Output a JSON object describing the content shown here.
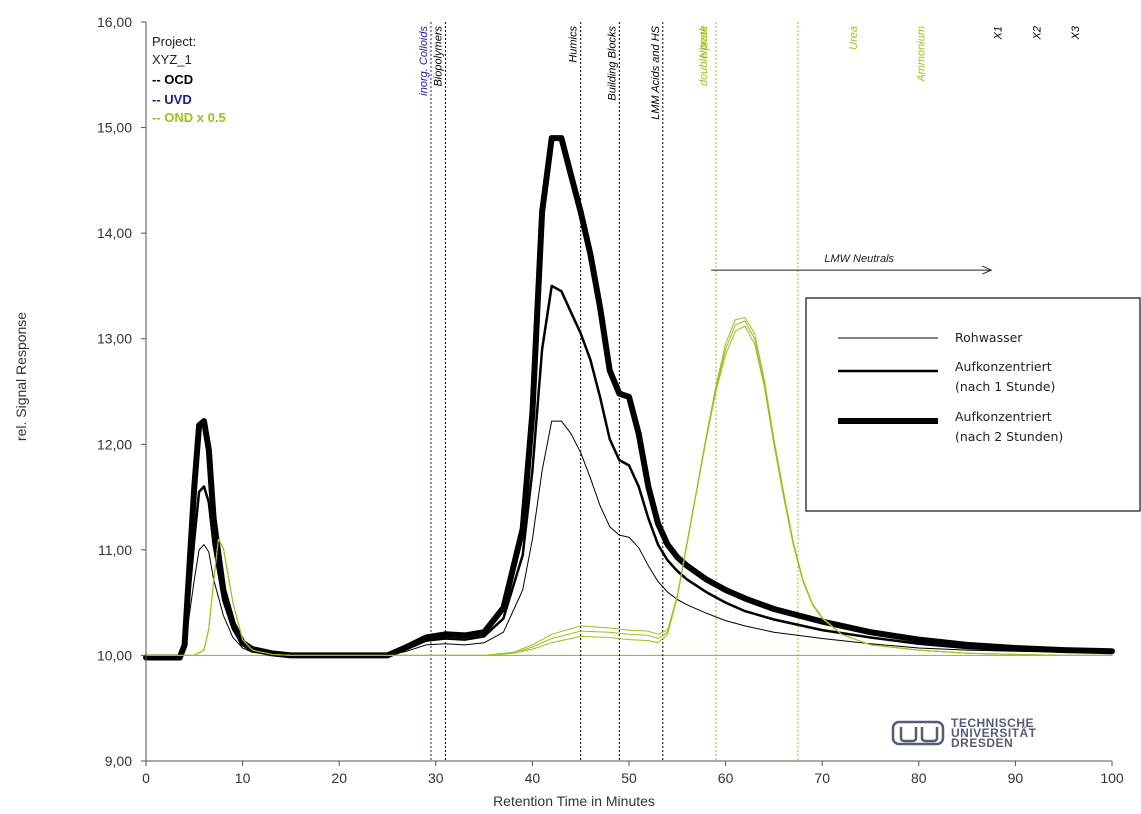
{
  "chart_data": {
    "type": "line",
    "xlabel": "Retention Time in Minutes",
    "ylabel": "rel. Signal Response",
    "xlim": [
      0,
      100
    ],
    "ylim": [
      9,
      16
    ],
    "x_ticks": [
      "0",
      "10",
      "20",
      "30",
      "40",
      "50",
      "60",
      "70",
      "80",
      "90",
      "100"
    ],
    "y_ticks": [
      "9,00",
      "10,00",
      "11,00",
      "12,00",
      "13,00",
      "14,00",
      "15,00",
      "16,00"
    ],
    "baseline": 10.0,
    "project": {
      "line1": "Project:",
      "line2": "XYZ_1",
      "detectors": [
        {
          "label": "-- OCD",
          "color": "#000000"
        },
        {
          "label": "-- UVD",
          "color": "#1a1aa6"
        },
        {
          "label": "-- OND x 0.5",
          "color": "#99c21a"
        }
      ]
    },
    "markers": [
      {
        "x": 29.5,
        "label": "inorg. Colloids",
        "color": "#1a1aa6",
        "line": "dotted"
      },
      {
        "x": 31.0,
        "label": "Biopolymers",
        "color": "#000000",
        "line": "dotted"
      },
      {
        "x": 45.0,
        "label": "Humics",
        "color": "#000000",
        "line": "dotted"
      },
      {
        "x": 49.0,
        "label": "Building Blocks",
        "color": "#000000",
        "line": "dotted"
      },
      {
        "x": 53.5,
        "label": "LMM Acids and HS",
        "color": "#000000",
        "line": "dotted"
      },
      {
        "x": 59.0,
        "label": "Nitrate double peak",
        "label_lines": [
          "Nitrate",
          "double peak"
        ],
        "color": "#99c21a",
        "line": "dotted"
      },
      {
        "x": 67.5,
        "label": "",
        "color": "#99c21a",
        "line": "dotted"
      },
      {
        "x": 74.0,
        "label": "Urea",
        "color": "#99c21a",
        "line": "none"
      },
      {
        "x": 81.0,
        "label": "Ammonium",
        "color": "#99c21a",
        "line": "none"
      },
      {
        "x": 89.0,
        "label": "X1",
        "color": "#000000",
        "line": "none"
      },
      {
        "x": 93.0,
        "label": "X2",
        "color": "#000000",
        "line": "none"
      },
      {
        "x": 97.0,
        "label": "X3",
        "color": "#000000",
        "line": "none"
      }
    ],
    "annotation": {
      "label": "LMW Neutrals",
      "x_start": 58.5,
      "x_end": 87.5,
      "y": 13.65
    },
    "legend": {
      "placement": "right",
      "entries": [
        {
          "text": [
            "Rohwasser"
          ],
          "width": 1
        },
        {
          "text": [
            "Aufkonzentriert",
            "(nach 1 Stunde)"
          ],
          "width": 2.5
        },
        {
          "text": [
            "Aufkonzentriert",
            "(nach 2 Stunden)"
          ],
          "width": 6
        }
      ]
    },
    "series": [
      {
        "detector": "OCD",
        "color": "#000000",
        "width": 1,
        "x": [
          0,
          3.5,
          4,
          5,
          5.5,
          6,
          6.5,
          7,
          8,
          9,
          10,
          11,
          13,
          15,
          20,
          25,
          27,
          29,
          31,
          33,
          35,
          37,
          39,
          40,
          41,
          42,
          43,
          44,
          45,
          46,
          47,
          48,
          49,
          50,
          51,
          52,
          53,
          54,
          55,
          56,
          58,
          60,
          62,
          65,
          70,
          75,
          80,
          85,
          90,
          95,
          100
        ],
        "y": [
          9.98,
          9.98,
          10.06,
          10.72,
          11.0,
          11.05,
          10.98,
          10.72,
          10.38,
          10.17,
          10.07,
          10.03,
          10.01,
          10.0,
          10.0,
          10.0,
          10.04,
          10.1,
          10.11,
          10.1,
          10.12,
          10.22,
          10.62,
          11.1,
          11.75,
          12.22,
          12.22,
          12.1,
          11.92,
          11.68,
          11.42,
          11.22,
          11.14,
          11.12,
          11.02,
          10.85,
          10.7,
          10.6,
          10.53,
          10.48,
          10.4,
          10.33,
          10.28,
          10.22,
          10.16,
          10.11,
          10.07,
          10.05,
          10.04,
          10.03,
          10.03
        ]
      },
      {
        "detector": "OCD",
        "color": "#000000",
        "width": 2.5,
        "x": [
          0,
          3.5,
          4,
          5,
          5.5,
          6,
          6.5,
          7,
          8,
          9,
          10,
          11,
          13,
          15,
          20,
          25,
          27,
          29,
          31,
          33,
          35,
          37,
          39,
          40,
          41,
          42,
          43,
          44,
          45,
          46,
          47,
          48,
          49,
          50,
          51,
          52,
          53,
          54,
          55,
          56,
          58,
          60,
          62,
          65,
          70,
          75,
          80,
          85,
          90,
          95,
          100
        ],
        "y": [
          9.98,
          9.98,
          10.08,
          11.1,
          11.55,
          11.6,
          11.45,
          11.05,
          10.52,
          10.25,
          10.1,
          10.05,
          10.02,
          10.0,
          10.0,
          10.0,
          10.06,
          10.14,
          10.16,
          10.15,
          10.18,
          10.35,
          10.95,
          11.75,
          12.9,
          13.5,
          13.45,
          13.25,
          13.05,
          12.8,
          12.45,
          12.05,
          11.85,
          11.8,
          11.6,
          11.3,
          11.05,
          10.9,
          10.8,
          10.72,
          10.6,
          10.5,
          10.42,
          10.34,
          10.24,
          10.17,
          10.11,
          10.07,
          10.05,
          10.04,
          10.03
        ]
      },
      {
        "detector": "OCD",
        "color": "#000000",
        "width": 6,
        "x": [
          0,
          3.5,
          4,
          5,
          5.5,
          6,
          6.5,
          7,
          8,
          9,
          10,
          11,
          13,
          15,
          20,
          25,
          27,
          29,
          31,
          33,
          35,
          37,
          39,
          40,
          41,
          42,
          43,
          44,
          45,
          46,
          47,
          48,
          49,
          50,
          51,
          52,
          53,
          54,
          55,
          56,
          58,
          60,
          62,
          65,
          70,
          75,
          80,
          85,
          90,
          95,
          100
        ],
        "y": [
          9.98,
          9.98,
          10.1,
          11.6,
          12.18,
          12.22,
          11.95,
          11.3,
          10.62,
          10.3,
          10.12,
          10.06,
          10.02,
          10.0,
          10.0,
          10.0,
          10.08,
          10.17,
          10.2,
          10.19,
          10.22,
          10.45,
          11.2,
          12.3,
          14.2,
          14.9,
          14.9,
          14.55,
          14.2,
          13.8,
          13.3,
          12.7,
          12.48,
          12.45,
          12.1,
          11.6,
          11.25,
          11.05,
          10.93,
          10.85,
          10.72,
          10.62,
          10.54,
          10.44,
          10.32,
          10.22,
          10.15,
          10.1,
          10.07,
          10.05,
          10.04
        ]
      },
      {
        "detector": "OND x 0.5",
        "color": "#99c21a",
        "width": 1,
        "x": [
          0,
          5,
          6,
          6.5,
          7,
          7.5,
          8,
          9,
          10,
          11,
          13,
          15,
          25,
          30,
          35,
          38,
          40,
          42,
          45,
          48,
          50,
          52,
          53,
          54,
          55,
          56,
          57,
          58,
          59,
          60,
          61,
          62,
          63,
          64,
          65,
          66,
          67,
          68,
          69,
          70,
          72,
          75,
          80,
          85,
          90,
          95,
          100
        ],
        "y": [
          10.0,
          10.0,
          10.05,
          10.25,
          10.7,
          11.1,
          11.02,
          10.5,
          10.15,
          10.05,
          10.01,
          10.0,
          10.0,
          10.0,
          10.0,
          10.02,
          10.06,
          10.12,
          10.18,
          10.17,
          10.15,
          10.14,
          10.12,
          10.2,
          10.55,
          11.05,
          11.55,
          12.05,
          12.5,
          12.85,
          13.07,
          13.12,
          12.95,
          12.55,
          12.0,
          11.5,
          11.05,
          10.7,
          10.48,
          10.35,
          10.2,
          10.1,
          10.05,
          10.02,
          10.01,
          10.0,
          10.0
        ]
      },
      {
        "detector": "OND x 0.5",
        "color": "#99c21a",
        "width": 1,
        "x": [
          0,
          5,
          6,
          6.5,
          7,
          7.5,
          8,
          9,
          10,
          11,
          13,
          15,
          25,
          30,
          35,
          38,
          40,
          42,
          45,
          48,
          50,
          52,
          53,
          54,
          55,
          56,
          57,
          58,
          59,
          60,
          61,
          62,
          63,
          64,
          65,
          66,
          67,
          68,
          69,
          70,
          72,
          75,
          80,
          85,
          90,
          95,
          100
        ],
        "y": [
          10.0,
          10.0,
          10.05,
          10.25,
          10.7,
          11.1,
          11.02,
          10.5,
          10.15,
          10.05,
          10.01,
          10.0,
          10.0,
          10.0,
          10.0,
          10.02,
          10.08,
          10.16,
          10.23,
          10.22,
          10.2,
          10.19,
          10.16,
          10.22,
          10.56,
          11.06,
          11.56,
          12.06,
          12.52,
          12.9,
          13.13,
          13.17,
          13.0,
          12.58,
          12.02,
          11.52,
          11.06,
          10.71,
          10.48,
          10.35,
          10.2,
          10.1,
          10.05,
          10.02,
          10.01,
          10.0,
          10.0
        ]
      },
      {
        "detector": "OND x 0.5",
        "color": "#99c21a",
        "width": 1,
        "x": [
          0,
          5,
          6,
          6.5,
          7,
          7.5,
          8,
          9,
          10,
          11,
          13,
          15,
          25,
          30,
          35,
          38,
          40,
          42,
          45,
          48,
          50,
          52,
          53,
          54,
          55,
          56,
          57,
          58,
          59,
          60,
          61,
          62,
          63,
          64,
          65,
          66,
          67,
          68,
          69,
          70,
          72,
          75,
          80,
          85,
          90,
          95,
          100
        ],
        "y": [
          10.0,
          10.0,
          10.05,
          10.25,
          10.7,
          11.1,
          11.02,
          10.5,
          10.15,
          10.05,
          10.01,
          10.0,
          10.0,
          10.0,
          10.0,
          10.03,
          10.1,
          10.2,
          10.28,
          10.26,
          10.24,
          10.23,
          10.2,
          10.24,
          10.57,
          11.07,
          11.57,
          12.08,
          12.55,
          12.95,
          13.18,
          13.2,
          13.05,
          12.62,
          12.05,
          11.55,
          11.08,
          10.72,
          10.49,
          10.36,
          10.2,
          10.1,
          10.05,
          10.02,
          10.01,
          10.0,
          10.0
        ]
      }
    ]
  },
  "logo": {
    "lines": [
      "TECHNISCHE",
      "UNIVERSITÄT",
      "DRESDEN"
    ],
    "icon": "tu-dresden-logo-icon"
  }
}
